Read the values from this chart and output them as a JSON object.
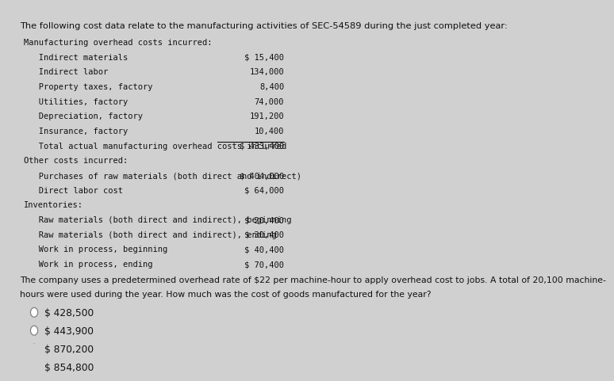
{
  "bg_color": "#d0d0d0",
  "content_bg": "#e0e0e0",
  "title_line": "The following cost data relate to the manufacturing activities of SEC-54589 during the just completed year:",
  "section1_header": "Manufacturing overhead costs incurred:",
  "section1_items": [
    "   Indirect materials",
    "   Indirect labor",
    "   Property taxes, factory",
    "   Utilities, factory",
    "   Depreciation, factory",
    "   Insurance, factory",
    "   Total actual manufacturing overhead costs incurred"
  ],
  "section1_values": [
    "$ 15,400",
    "134,000",
    "8,400",
    "74,000",
    "191,200",
    "10,400",
    "$ 433,400"
  ],
  "section2_header": "Other costs incurred:",
  "section2_items": [
    "   Purchases of raw materials (both direct and indirect)",
    "   Direct labor cost"
  ],
  "section2_values": [
    "$ 404,000",
    "$ 64,000"
  ],
  "section3_header": "Inventories:",
  "section3_items": [
    "   Raw materials (both direct and indirect), beginning",
    "   Raw materials (both direct and indirect), ending",
    "   Work in process, beginning",
    "   Work in process, ending"
  ],
  "section3_values": [
    "$ 20,400",
    "$ 30,400",
    "$ 40,400",
    "$ 70,400"
  ],
  "question_line1": "The company uses a predetermined overhead rate of $22 per machine-hour to apply overhead cost to jobs. A total of 20,100 machine-",
  "question_line2": "hours were used during the year. How much was the cost of goods manufactured for the year?",
  "choices": [
    "$ 428,500",
    "$ 443,900",
    "$ 870,200",
    "$ 854,800"
  ],
  "font_size_title": 8.2,
  "font_size_body": 7.5,
  "font_size_choices": 8.8,
  "text_color": "#111111",
  "mono_font": "monospace"
}
